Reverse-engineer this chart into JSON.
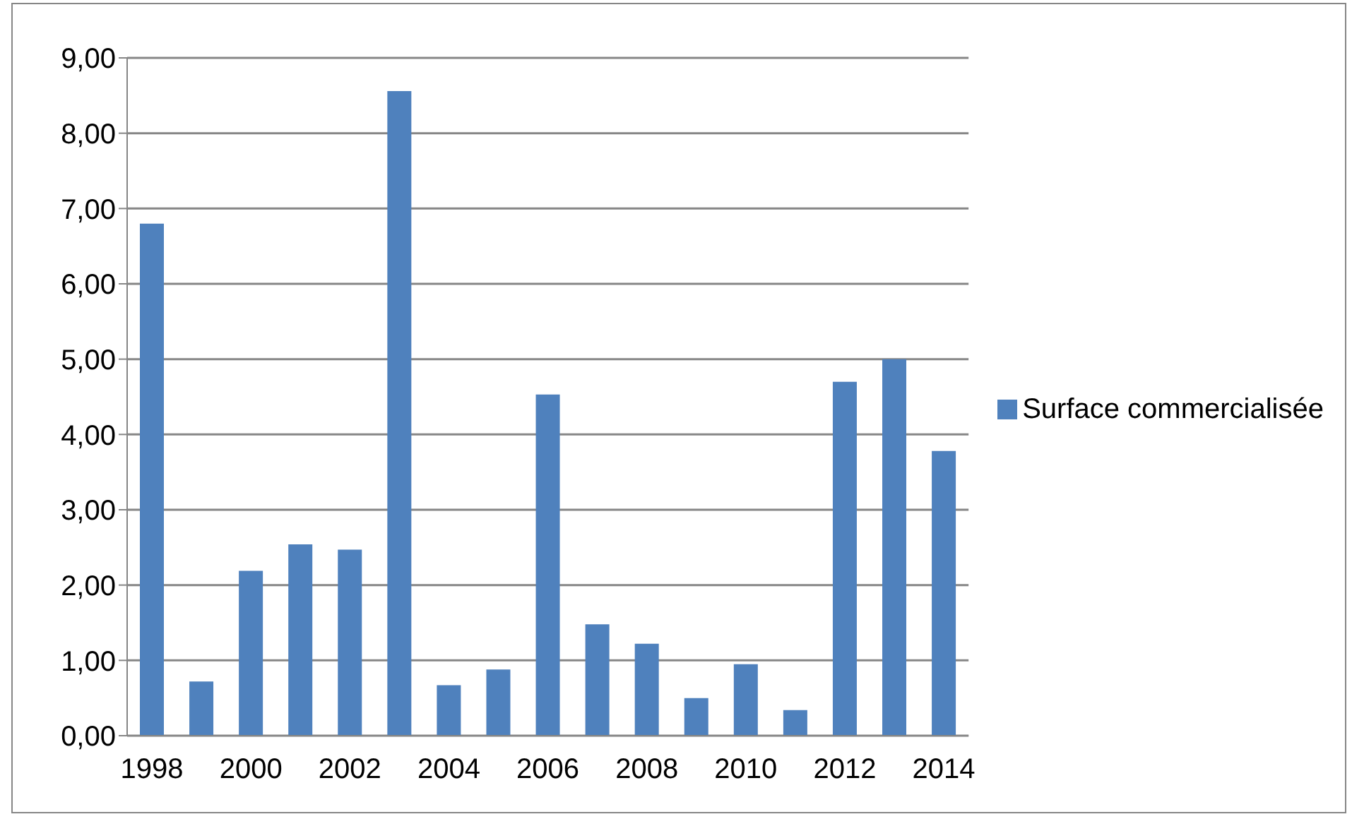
{
  "chart_data": {
    "type": "bar",
    "categories": [
      "1998",
      null,
      "2000",
      null,
      "2002",
      null,
      "2004",
      null,
      "2006",
      null,
      "2008",
      null,
      "2010",
      null,
      "2012",
      null,
      "2014"
    ],
    "series": [
      {
        "name": "Surface commercialisée",
        "color": "#4f81bd",
        "values": [
          6.8,
          0.72,
          2.19,
          2.54,
          2.47,
          8.56,
          0.67,
          0.88,
          4.53,
          1.48,
          1.22,
          0.5,
          0.95,
          0.34,
          4.7,
          5.0,
          3.78
        ]
      }
    ],
    "ylim": [
      0,
      9
    ],
    "yticks": [
      {
        "value": 0,
        "label": "0,00"
      },
      {
        "value": 1,
        "label": "1,00"
      },
      {
        "value": 2,
        "label": "2,00"
      },
      {
        "value": 3,
        "label": "3,00"
      },
      {
        "value": 4,
        "label": "4,00"
      },
      {
        "value": 5,
        "label": "5,00"
      },
      {
        "value": 6,
        "label": "6,00"
      },
      {
        "value": 7,
        "label": "7,00"
      },
      {
        "value": 8,
        "label": "8,00"
      },
      {
        "value": 9,
        "label": "9,00"
      }
    ],
    "grid": "y",
    "legend": "right"
  }
}
